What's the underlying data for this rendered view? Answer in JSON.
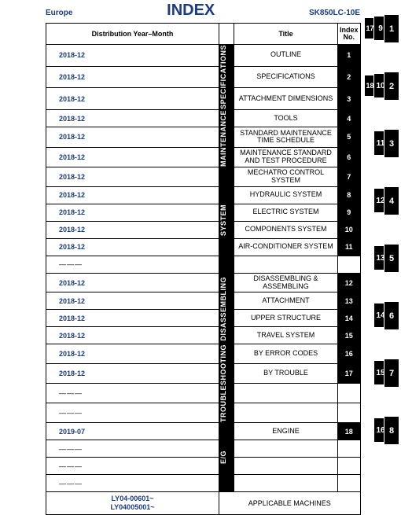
{
  "header": {
    "left": "Europe",
    "title": "INDEX",
    "right": "SK850LC-10E"
  },
  "columns": {
    "dist": "Distribution Year–Month",
    "title": "Title",
    "idx_l1": "Index",
    "idx_l2": "No."
  },
  "cats": {
    "spec": "SPECIFICATIONS",
    "maint": "MAINTENANCE",
    "sys": "SYSTEM",
    "dis": "DISASSEMBLING",
    "trb": "TROUBLESHOOTING",
    "eg": "E/G"
  },
  "rows": [
    {
      "dist": "2018-12",
      "title": "OUTLINE",
      "idx": "1"
    },
    {
      "dist": "2018-12",
      "title": "SPECIFICATIONS",
      "idx": "2"
    },
    {
      "dist": "2018-12",
      "title": "ATTACHMENT DIMENSIONS",
      "idx": "3"
    },
    {
      "dist": "2018-12",
      "title": "TOOLS",
      "idx": "4"
    },
    {
      "dist": "2018-12",
      "title": "STANDARD MAINTENANCE TIME SCHEDULE",
      "idx": "5"
    },
    {
      "dist": "2018-12",
      "title": "MAINTENANCE STANDARD AND TEST PROCEDURE",
      "idx": "6"
    },
    {
      "dist": "2018-12",
      "title": "MECHATRO CONTROL SYSTEM",
      "idx": "7"
    },
    {
      "dist": "2018-12",
      "title": "HYDRAULIC SYSTEM",
      "idx": "8"
    },
    {
      "dist": "2018-12",
      "title": "ELECTRIC SYSTEM",
      "idx": "9"
    },
    {
      "dist": "2018-12",
      "title": "COMPONENTS SYSTEM",
      "idx": "10"
    },
    {
      "dist": "2018-12",
      "title": "AIR-CONDITIONER SYSTEM",
      "idx": "11"
    },
    {
      "dist": "",
      "title": "",
      "idx": ""
    },
    {
      "dist": "2018-12",
      "title": "DISASSEMBLING & ASSEMBLING",
      "idx": "12"
    },
    {
      "dist": "2018-12",
      "title": "ATTACHMENT",
      "idx": "13"
    },
    {
      "dist": "2018-12",
      "title": "UPPER STRUCTURE",
      "idx": "14"
    },
    {
      "dist": "2018-12",
      "title": "TRAVEL SYSTEM",
      "idx": "15"
    },
    {
      "dist": "2018-12",
      "title": "BY ERROR CODES",
      "idx": "16"
    },
    {
      "dist": "2018-12",
      "title": "BY TROUBLE",
      "idx": "17"
    },
    {
      "dist": "",
      "title": "",
      "idx": ""
    },
    {
      "dist": "",
      "title": "",
      "idx": ""
    },
    {
      "dist": "2019-07",
      "title": "ENGINE",
      "idx": "18"
    },
    {
      "dist": "",
      "title": "",
      "idx": ""
    },
    {
      "dist": "",
      "title": "",
      "idx": ""
    },
    {
      "dist": "",
      "title": "",
      "idx": ""
    }
  ],
  "serials": {
    "l1": "LY04-00601~",
    "l2": "LY04005001~"
  },
  "applicable": "APPLICABLE MACHINES",
  "dash": "———",
  "tabs": [
    [
      "17",
      "9",
      "1"
    ],
    [
      "18",
      "10",
      "2"
    ],
    [
      "",
      "11",
      "3"
    ],
    [
      "",
      "12",
      "4"
    ],
    [
      "",
      "13",
      "5"
    ],
    [
      "",
      "14",
      "6"
    ],
    [
      "",
      "15",
      "7"
    ],
    [
      "",
      "16",
      "8"
    ]
  ],
  "style": {
    "accent": "#1a3a8a",
    "tab_bg": "#000000",
    "tab_fg": "#ffffff"
  }
}
